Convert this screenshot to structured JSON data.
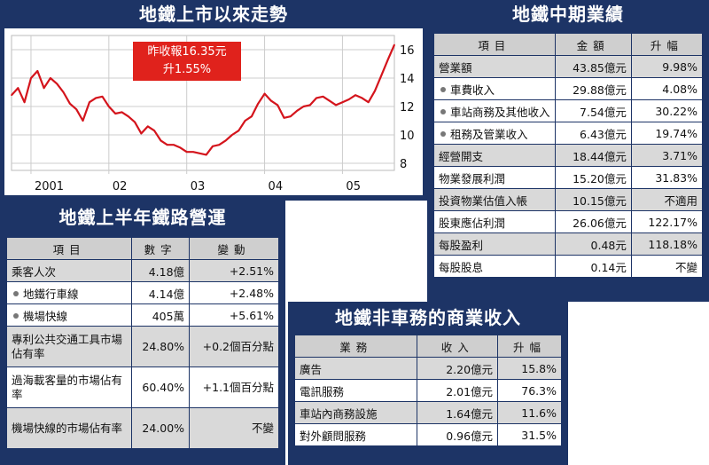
{
  "chart_data": {
    "type": "line",
    "title": "地鐵上市以來走勢",
    "x_labels": [
      "2001",
      "02",
      "03",
      "04",
      "05"
    ],
    "y_ticks": [
      8,
      10,
      12,
      14,
      16
    ],
    "ylim": [
      7.5,
      17
    ],
    "line_color": "#d4141c",
    "annotation": [
      "昨收報16.35元",
      "升1.55%"
    ],
    "series": [
      {
        "x": [
          "2000-10",
          "2000-11",
          "2000-12",
          "2001-01",
          "2001-02",
          "2001-03",
          "2001-04",
          "2001-05",
          "2001-06",
          "2001-07",
          "2001-08",
          "2001-09",
          "2001-10",
          "2001-11",
          "2001-12",
          "2002-01",
          "2002-02",
          "2002-03",
          "2002-04",
          "2002-05",
          "2002-06",
          "2002-07",
          "2002-08",
          "2002-09",
          "2002-10",
          "2002-11",
          "2002-12",
          "2003-01",
          "2003-02",
          "2003-03",
          "2003-04",
          "2003-05",
          "2003-06",
          "2003-07",
          "2003-08",
          "2003-09",
          "2003-10",
          "2003-11",
          "2003-12",
          "2004-01",
          "2004-02",
          "2004-03",
          "2004-04",
          "2004-05",
          "2004-06",
          "2004-07",
          "2004-08",
          "2004-09",
          "2004-10",
          "2004-11",
          "2004-12",
          "2005-01",
          "2005-02",
          "2005-03",
          "2005-04",
          "2005-05",
          "2005-06",
          "2005-07",
          "2005-08",
          "2005-09"
        ],
        "values": [
          12.8,
          13.3,
          12.3,
          14.0,
          14.5,
          13.3,
          14.0,
          13.6,
          13.0,
          12.2,
          11.8,
          11.0,
          12.3,
          12.6,
          12.7,
          12.0,
          11.5,
          11.6,
          11.3,
          10.9,
          10.1,
          10.6,
          10.3,
          9.6,
          9.3,
          9.3,
          9.1,
          8.8,
          8.8,
          8.7,
          8.6,
          9.2,
          9.3,
          9.6,
          10.0,
          10.3,
          11.0,
          11.3,
          12.2,
          12.9,
          12.4,
          12.1,
          11.2,
          11.3,
          11.7,
          12.0,
          12.1,
          12.6,
          12.7,
          12.4,
          12.1,
          12.3,
          12.5,
          12.8,
          12.6,
          12.3,
          13.1,
          14.2,
          15.3,
          16.35
        ]
      }
    ]
  },
  "panels": {
    "interim": {
      "title": "地鐵中期業績",
      "headers": [
        "項目",
        "金額",
        "升幅"
      ],
      "rows": [
        {
          "label": "營業額",
          "amount": "43.85億元",
          "change": "9.98%"
        },
        {
          "label": "車費收入",
          "amount": "29.88億元",
          "change": "4.08%"
        },
        {
          "label": "車站商務及其他收入",
          "amount": "7.54億元",
          "change": "30.22%"
        },
        {
          "label": "租務及管業收入",
          "amount": "6.43億元",
          "change": "19.74%"
        },
        {
          "label": "經營開支",
          "amount": "18.44億元",
          "change": "3.71%"
        },
        {
          "label": "物業發展利潤",
          "amount": "15.20億元",
          "change": "31.83%"
        },
        {
          "label": "投資物業估值入帳",
          "amount": "10.15億元",
          "change": "不適用"
        },
        {
          "label": "股東應佔利潤",
          "amount": "26.06億元",
          "change": "122.17%"
        },
        {
          "label": "每股盈利",
          "amount": "0.48元",
          "change": "118.18%"
        },
        {
          "label": "每股股息",
          "amount": "0.14元",
          "change": "不變"
        }
      ]
    },
    "rail": {
      "title": "地鐵上半年鐵路營運",
      "headers": [
        "項目",
        "數字",
        "變動"
      ],
      "rows": [
        {
          "label": "乘客人次",
          "value": "4.18億",
          "change": "+2.51%"
        },
        {
          "label": "地鐵行車線",
          "value": "4.14億",
          "change": "+2.48%"
        },
        {
          "label": "機場快線",
          "value": "405萬",
          "change": "+5.61%"
        },
        {
          "label": "專利公共交通工具市場佔有率",
          "value": "24.80%",
          "change": "+0.2個百分點"
        },
        {
          "label": "過海載客量的市場佔有率",
          "value": "60.40%",
          "change": "+1.1個百分點"
        },
        {
          "label": "機場快線的市場佔有率",
          "value": "24.00%",
          "change": "不變"
        }
      ]
    },
    "nonfare": {
      "title": "地鐵非車務的商業收入",
      "headers": [
        "業務",
        "收入",
        "升幅"
      ],
      "rows": [
        {
          "label": "廣告",
          "income": "2.20億元",
          "change": "15.8%"
        },
        {
          "label": "電訊服務",
          "income": "2.01億元",
          "change": "76.3%"
        },
        {
          "label": "車站內商務設施",
          "income": "1.64億元",
          "change": "11.6%"
        },
        {
          "label": "對外顧問服務",
          "income": "0.96億元",
          "change": "31.5%"
        }
      ]
    }
  }
}
